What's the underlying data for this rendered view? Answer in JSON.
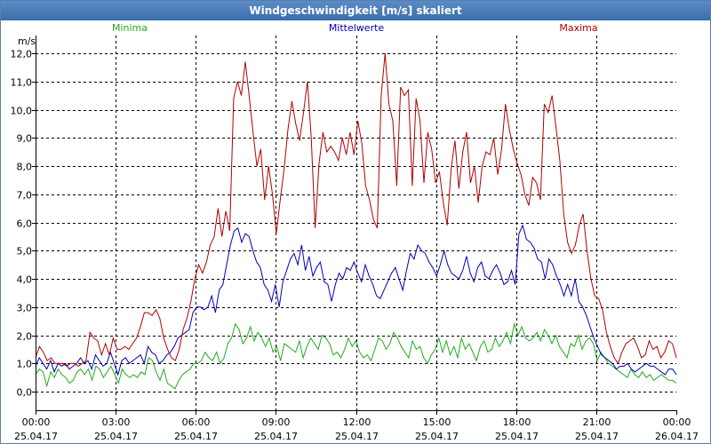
{
  "window": {
    "title": "Windgeschwindigkeit [m/s] skaliert"
  },
  "colors": {
    "minima": "#1faa1f",
    "mittel": "#0000b8",
    "maxima": "#b00000",
    "grid": "#000000",
    "axis": "#000000"
  },
  "chart_data": {
    "type": "line",
    "title": "Windgeschwindigkeit [m/s] skaliert",
    "ylabel": "m/s",
    "ylim": [
      0,
      12
    ],
    "xlim_hours": [
      0,
      24
    ],
    "yticks": [
      "0,0",
      "1,0",
      "2,0",
      "3,0",
      "4,0",
      "5,0",
      "6,0",
      "7,0",
      "8,0",
      "9,0",
      "10,0",
      "11,0",
      "12,0"
    ],
    "xticks": [
      {
        "time": "00:00",
        "date": "25.04.17"
      },
      {
        "time": "03:00",
        "date": "25.04.17"
      },
      {
        "time": "06:00",
        "date": "25.04.17"
      },
      {
        "time": "09:00",
        "date": "25.04.17"
      },
      {
        "time": "12:00",
        "date": "25.04.17"
      },
      {
        "time": "15:00",
        "date": "25.04.17"
      },
      {
        "time": "18:00",
        "date": "25.04.17"
      },
      {
        "time": "21:00",
        "date": "25.04.17"
      },
      {
        "time": "00:00",
        "date": "26.04.17"
      }
    ],
    "series": [
      {
        "name": "Minima",
        "color": "#1faa1f",
        "values": [
          0.6,
          0.8,
          0.7,
          0.2,
          0.7,
          0.5,
          0.8,
          0.6,
          0.5,
          0.3,
          0.4,
          0.7,
          0.8,
          0.6,
          0.8,
          0.4,
          0.9,
          0.8,
          0.5,
          0.7,
          0.9,
          0.6,
          0.3,
          0.8,
          0.6,
          0.5,
          0.6,
          0.5,
          0.7,
          0.6,
          1.2,
          1.1,
          0.7,
          0.4,
          0.8,
          0.3,
          0.2,
          0.1,
          0.4,
          0.6,
          0.7,
          0.8,
          1.0,
          1.0,
          1.1,
          1.4,
          1.2,
          1.1,
          1.4,
          1.0,
          1.2,
          1.7,
          1.9,
          2.4,
          2.2,
          1.7,
          1.9,
          2.3,
          1.8,
          2.1,
          1.9,
          1.6,
          1.9,
          1.4,
          1.6,
          1.1,
          1.7,
          1.6,
          1.5,
          1.4,
          1.8,
          1.2,
          1.6,
          1.9,
          1.7,
          1.5,
          2.0,
          1.9,
          1.7,
          1.3,
          1.4,
          1.2,
          1.5,
          1.9,
          1.6,
          1.8,
          1.4,
          1.2,
          1.3,
          1.1,
          1.5,
          1.9,
          1.8,
          1.5,
          1.7,
          2.1,
          1.9,
          1.6,
          1.4,
          1.2,
          1.8,
          1.5,
          1.6,
          1.2,
          1.0,
          1.3,
          1.5,
          1.9,
          1.4,
          1.8,
          1.3,
          1.6,
          1.2,
          1.9,
          1.5,
          1.7,
          1.4,
          1.1,
          1.6,
          1.8,
          1.4,
          1.5,
          1.9,
          1.6,
          1.8,
          2.1,
          1.7,
          2.4,
          2.0,
          2.3,
          1.9,
          1.8,
          1.9,
          2.1,
          1.8,
          2.2,
          2.0,
          1.7,
          2.0,
          1.6,
          1.4,
          1.2,
          1.7,
          1.6,
          2.0,
          1.5,
          1.8,
          1.9,
          1.7,
          1.1,
          1.4,
          1.2,
          1.0,
          0.9,
          0.8,
          0.7,
          0.6,
          0.5,
          0.8,
          0.6,
          0.5,
          0.7,
          0.5,
          0.6,
          0.4,
          0.5,
          0.6,
          0.5,
          0.4,
          0.4,
          0.3
        ]
      },
      {
        "name": "Mittelwerte",
        "color": "#0000b8",
        "values": [
          0.9,
          1.2,
          1.0,
          0.8,
          1.1,
          0.7,
          1.0,
          0.9,
          1.0,
          0.8,
          0.9,
          1.0,
          1.2,
          1.0,
          1.1,
          0.8,
          1.3,
          1.1,
          0.9,
          1.0,
          1.4,
          1.0,
          0.6,
          1.1,
          1.2,
          1.0,
          1.1,
          1.2,
          1.3,
          1.0,
          1.6,
          1.4,
          1.3,
          1.0,
          1.1,
          1.3,
          1.4,
          1.6,
          1.9,
          2.0,
          2.1,
          2.2,
          2.8,
          3.0,
          3.0,
          2.9,
          3.0,
          3.4,
          2.8,
          3.6,
          3.8,
          4.5,
          5.2,
          5.7,
          5.8,
          5.3,
          5.6,
          5.5,
          5.0,
          4.6,
          4.4,
          3.8,
          3.6,
          3.2,
          3.8,
          3.0,
          3.9,
          4.3,
          4.7,
          4.9,
          4.5,
          5.2,
          4.3,
          4.8,
          4.1,
          4.4,
          4.6,
          3.9,
          3.8,
          3.2,
          3.8,
          4.2,
          4.0,
          4.4,
          4.3,
          4.6,
          4.2,
          3.9,
          4.5,
          4.1,
          3.8,
          3.4,
          3.3,
          3.6,
          3.9,
          4.2,
          4.4,
          4.0,
          3.6,
          4.3,
          4.9,
          4.7,
          5.2,
          5.0,
          4.9,
          4.6,
          4.4,
          4.1,
          4.5,
          5.0,
          4.5,
          4.2,
          4.1,
          4.0,
          4.3,
          4.8,
          4.2,
          3.9,
          4.4,
          4.6,
          4.1,
          4.0,
          4.3,
          4.5,
          4.2,
          3.8,
          3.9,
          4.3,
          3.8,
          5.6,
          5.9,
          5.4,
          5.3,
          5.1,
          4.7,
          4.6,
          4.0,
          4.7,
          4.5,
          4.1,
          3.8,
          3.4,
          3.8,
          3.4,
          4.0,
          3.2,
          3.0,
          2.7,
          2.3,
          1.9,
          1.6,
          1.3,
          1.2,
          1.1,
          1.0,
          0.8,
          0.9,
          0.9,
          1.0,
          0.8,
          0.7,
          0.8,
          0.9,
          1.0,
          0.9,
          0.9,
          0.8,
          0.7,
          0.6,
          0.8,
          0.8,
          0.6
        ]
      },
      {
        "name": "Maxima",
        "color": "#b00000",
        "values": [
          1.2,
          1.6,
          1.4,
          1.1,
          1.2,
          1.0,
          1.0,
          1.0,
          0.9,
          1.0,
          1.0,
          0.9,
          1.0,
          1.1,
          2.1,
          1.9,
          1.8,
          1.3,
          1.7,
          1.3,
          1.9,
          1.5,
          1.5,
          1.6,
          1.5,
          1.7,
          1.9,
          2.3,
          2.8,
          2.8,
          2.7,
          2.9,
          2.6,
          1.9,
          1.5,
          1.2,
          1.1,
          1.5,
          2.2,
          2.6,
          3.2,
          4.0,
          4.5,
          4.2,
          4.6,
          5.2,
          5.5,
          6.5,
          5.5,
          6.4,
          5.7,
          10.4,
          11.0,
          10.5,
          11.7,
          10.5,
          9.2,
          8.0,
          8.6,
          6.8,
          8.0,
          7.0,
          5.6,
          6.8,
          7.9,
          9.3,
          10.3,
          9.5,
          8.9,
          9.9,
          11.0,
          9.0,
          5.8,
          8.1,
          9.2,
          8.5,
          8.7,
          8.5,
          8.2,
          9.0,
          8.4,
          9.2,
          8.4,
          9.6,
          8.8,
          7.3,
          6.8,
          6.1,
          5.8,
          10.5,
          12.0,
          10.2,
          9.6,
          7.3,
          10.8,
          10.5,
          10.7,
          7.3,
          10.4,
          9.6,
          7.4,
          9.2,
          8.6,
          7.4,
          7.8,
          6.7,
          5.9,
          7.9,
          8.9,
          7.2,
          8.5,
          9.2,
          7.4,
          8.0,
          6.7,
          8.0,
          8.5,
          8.4,
          9.0,
          7.7,
          8.6,
          10.2,
          9.3,
          8.6,
          8.1,
          7.7,
          7.0,
          6.6,
          7.6,
          7.4,
          6.8,
          10.2,
          9.9,
          10.5,
          9.4,
          8.2,
          6.3,
          5.3,
          4.9,
          5.2,
          5.9,
          6.3,
          5.0,
          4.0,
          3.4,
          3.3,
          2.9,
          2.1,
          1.6,
          1.2,
          1.0,
          1.4,
          1.7,
          1.8,
          1.9,
          1.6,
          1.2,
          1.3,
          1.8,
          1.5,
          1.6,
          1.2,
          1.4,
          1.8,
          1.7,
          1.2
        ]
      }
    ]
  }
}
